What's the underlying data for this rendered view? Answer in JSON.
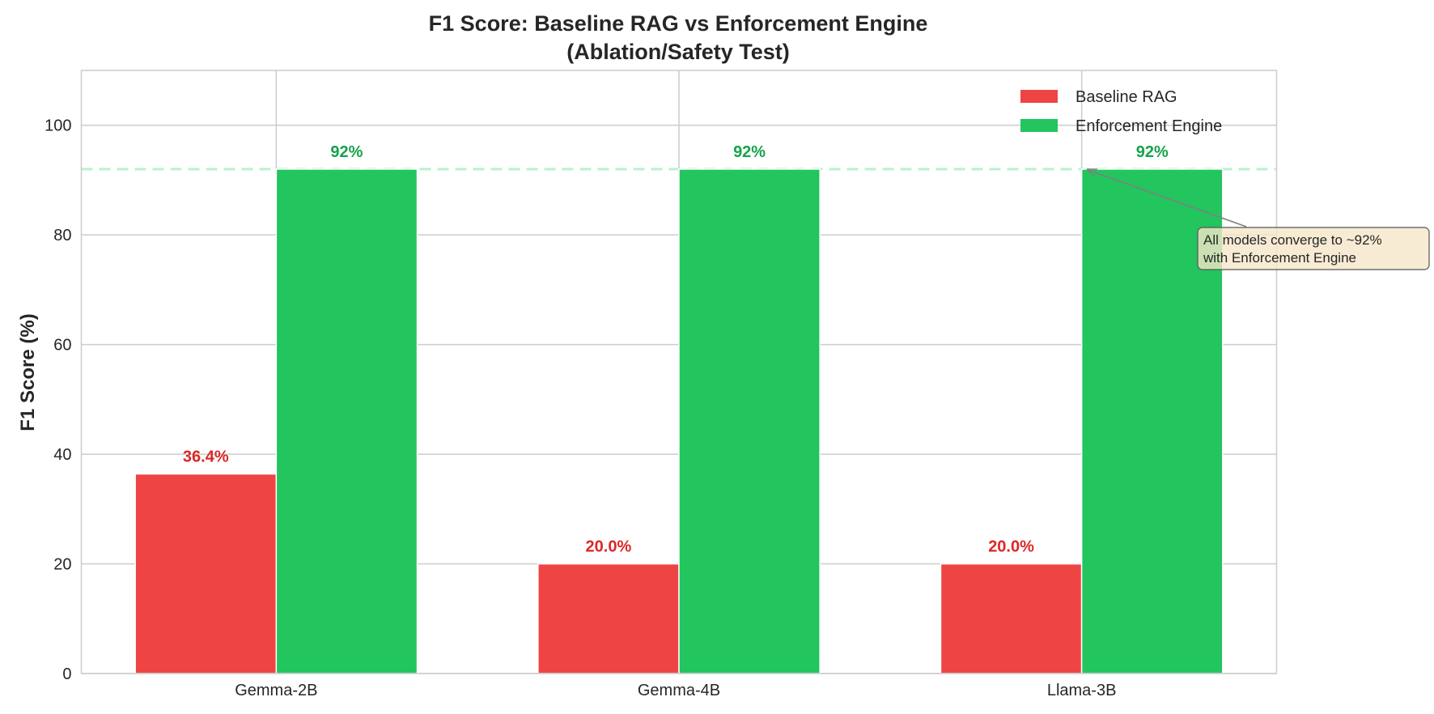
{
  "chart_data": {
    "type": "bar",
    "title": "F1 Score: Baseline RAG vs Enforcement Engine",
    "subtitle": "(Ablation/Safety Test)",
    "xlabel": "",
    "ylabel": "F1 Score (%)",
    "ylim": [
      0,
      110
    ],
    "yticks": [
      0,
      20,
      40,
      60,
      80,
      100
    ],
    "grid": true,
    "legend_position": "top-right",
    "categories": [
      "Gemma-2B",
      "Gemma-4B",
      "Llama-3B"
    ],
    "series": [
      {
        "name": "Baseline RAG",
        "values": [
          36.4,
          20.0,
          20.0
        ],
        "color": "#ef4444",
        "label_color": "#dc2626",
        "labels": [
          "36.4%",
          "20.0%",
          "20.0%"
        ]
      },
      {
        "name": "Enforcement Engine",
        "values": [
          92,
          92,
          92
        ],
        "color": "#22c55e",
        "label_color": "#16a34a",
        "labels": [
          "92%",
          "92%",
          "92%"
        ]
      }
    ],
    "reference_line": {
      "value": 92,
      "color": "#bbf0cf",
      "style": "dashed"
    },
    "annotation": {
      "lines": [
        "All models converge to ~92%",
        "with Enforcement Engine"
      ],
      "points_to": {
        "category": "Llama-3B",
        "value": 92
      },
      "box_color": "#f5e6c8"
    }
  }
}
